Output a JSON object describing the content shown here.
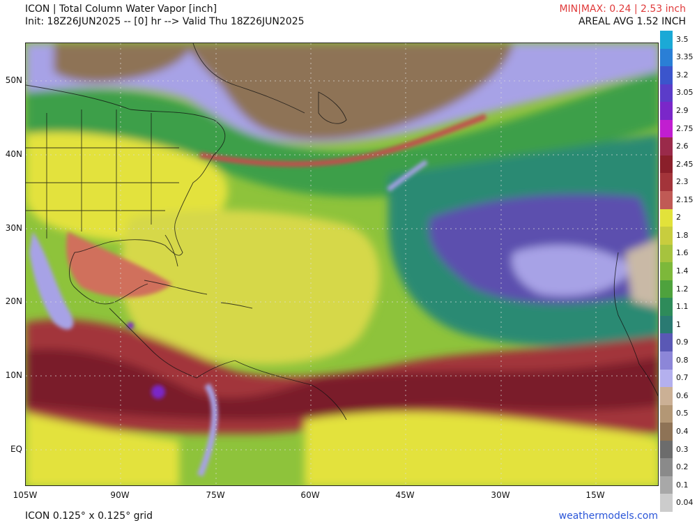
{
  "header": {
    "title": "ICON | Total Column Water Vapor [inch]",
    "init": "Init: 18Z26JUN2025 -- [0] hr --> Valid Thu 18Z26JUN2025",
    "minmax": "MIN|MAX: 0.24 | 2.53 inch",
    "areal_avg": "AREAL AVG 1.52 INCH"
  },
  "map": {
    "lat_labels": [
      "50N",
      "40N",
      "30N",
      "20N",
      "10N",
      "EQ"
    ],
    "lon_labels": [
      "105W",
      "90W",
      "75W",
      "60W",
      "45W",
      "30W",
      "15W"
    ],
    "colors": {
      "very_dry": "#c9b9a6",
      "brown": "#8e7356",
      "lavender": "#a7a2e6",
      "purple": "#5b4fae",
      "teal": "#2a8a73",
      "green": "#3d9f4a",
      "lime": "#8ec33b",
      "yellow": "#e3e23c",
      "olive": "#c5c74a",
      "salmon": "#d06f5c",
      "red": "#a2363a",
      "maroon": "#7a1f2a"
    }
  },
  "colorbar": {
    "labels": [
      "3.5",
      "3.35",
      "3.2",
      "3.05",
      "2.9",
      "2.75",
      "2.6",
      "2.45",
      "2.3",
      "2.15",
      "2",
      "1.8",
      "1.6",
      "1.4",
      "1.2",
      "1.1",
      "1",
      "0.9",
      "0.8",
      "0.7",
      "0.6",
      "0.5",
      "0.4",
      "0.3",
      "0.2",
      "0.1",
      "0.04"
    ],
    "colors": [
      "#1ba9d6",
      "#2a7fd6",
      "#3b55cc",
      "#5b3cc9",
      "#7a27c9",
      "#c11ed0",
      "#9a2a4a",
      "#8a1f2a",
      "#a3343a",
      "#c05a55",
      "#e2e23a",
      "#c8cd3e",
      "#a6c33e",
      "#7db83a",
      "#4ea23d",
      "#2e8b5a",
      "#2a7a72",
      "#5a58b5",
      "#8c86d8",
      "#b4b0ee",
      "#cbb095",
      "#b39775",
      "#8e7356",
      "#6c6c6c",
      "#8a8a8a",
      "#a8a8a8",
      "#cccccc"
    ]
  },
  "footer": {
    "grid": "ICON 0.125° x 0.125° grid",
    "site": "weathermodels.com"
  }
}
